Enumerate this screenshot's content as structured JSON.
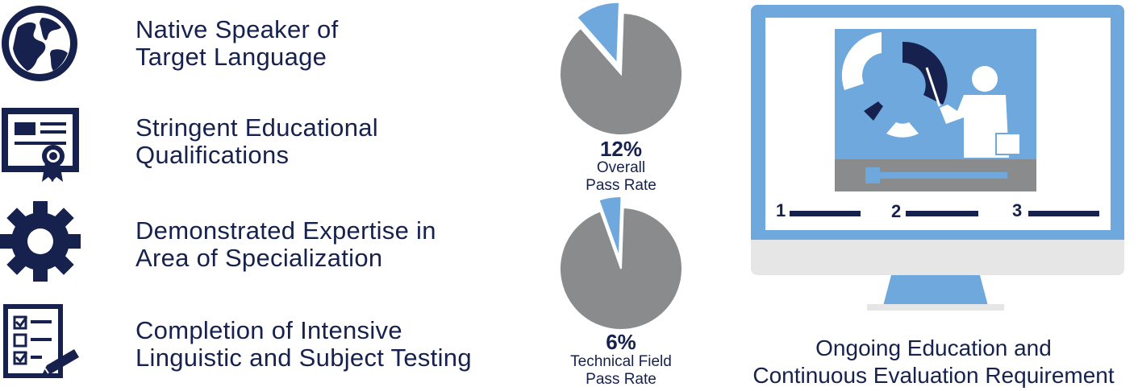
{
  "requirements": [
    {
      "icon": "globe-icon",
      "lines": [
        "Native Speaker of",
        "Target Language"
      ]
    },
    {
      "icon": "certificate-icon",
      "lines": [
        "Stringent Educational",
        "Qualifications"
      ]
    },
    {
      "icon": "gear-icon",
      "lines": [
        "Demonstrated Expertise in",
        "Area of Specialization"
      ]
    },
    {
      "icon": "checklist-icon",
      "lines": [
        "Completion of Intensive",
        "Linguistic and Subject Testing"
      ]
    }
  ],
  "pass_rates": [
    {
      "percent_label": "12%",
      "caption": [
        "Overall",
        "Pass Rate"
      ]
    },
    {
      "percent_label": "6%",
      "caption": [
        "Technical Field",
        "Pass Rate"
      ]
    }
  ],
  "chart_data": [
    {
      "type": "pie",
      "slices": [
        {
          "label": "Pass",
          "value": 12,
          "color": "#6fa8dc",
          "exploded": true
        },
        {
          "label": "",
          "value": 88,
          "color": "#8a8b8d"
        }
      ]
    },
    {
      "type": "pie",
      "slices": [
        {
          "label": "Pass",
          "value": 6,
          "color": "#6fa8dc",
          "exploded": true
        },
        {
          "label": "",
          "value": 94,
          "color": "#8a8b8d"
        }
      ]
    }
  ],
  "monitor": {
    "steps": [
      "1",
      "2",
      "3"
    ],
    "caption": [
      "Ongoing Education and",
      "Continuous Evaluation Requirement"
    ],
    "icon": "presentation-monitor-icon"
  },
  "colors": {
    "navy": "#16224d",
    "light_blue": "#6fa8dc",
    "gray": "#8a8b8d",
    "light_gray": "#e6e6e6"
  }
}
